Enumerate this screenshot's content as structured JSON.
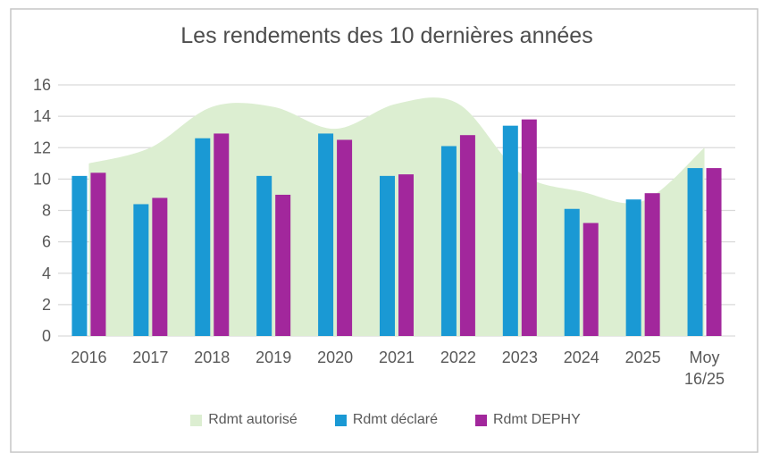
{
  "title": "Les rendements des 10 dernières années",
  "chart_data": {
    "type": "combo-area-bar",
    "title": "Les rendements des 10 dernières années",
    "categories": [
      "2016",
      "2017",
      "2018",
      "2019",
      "2020",
      "2021",
      "2022",
      "2023",
      "2024",
      "2025",
      "Moy 16/25"
    ],
    "series": [
      {
        "name": "Rdmt autorisé",
        "type": "area",
        "color": "#DCEED1",
        "values": [
          11,
          12,
          14.6,
          14.6,
          13.2,
          14.8,
          14.8,
          10.4,
          9.2,
          8.6,
          12
        ]
      },
      {
        "name": "Rdmt déclaré",
        "type": "bar",
        "color": "#1A99D4",
        "values": [
          10.2,
          8.4,
          12.6,
          10.2,
          12.9,
          10.2,
          12.1,
          13.4,
          8.1,
          8.7,
          10.7
        ]
      },
      {
        "name": "Rdmt DEPHY",
        "type": "bar",
        "color": "#A2279C",
        "values": [
          10.4,
          8.8,
          12.9,
          9.0,
          12.5,
          10.3,
          12.8,
          13.8,
          7.2,
          9.1,
          10.7
        ]
      }
    ],
    "ylim": [
      0,
      16
    ],
    "yticks": [
      0,
      2,
      4,
      6,
      8,
      10,
      12,
      14,
      16
    ],
    "grid": true,
    "legend_position": "bottom"
  },
  "colors": {
    "axis_text": "#595959",
    "title_text": "#4D4D4D",
    "gridline": "#D9D9D9",
    "frame_border": "#C6C6C6",
    "background": "#FFFFFF"
  }
}
